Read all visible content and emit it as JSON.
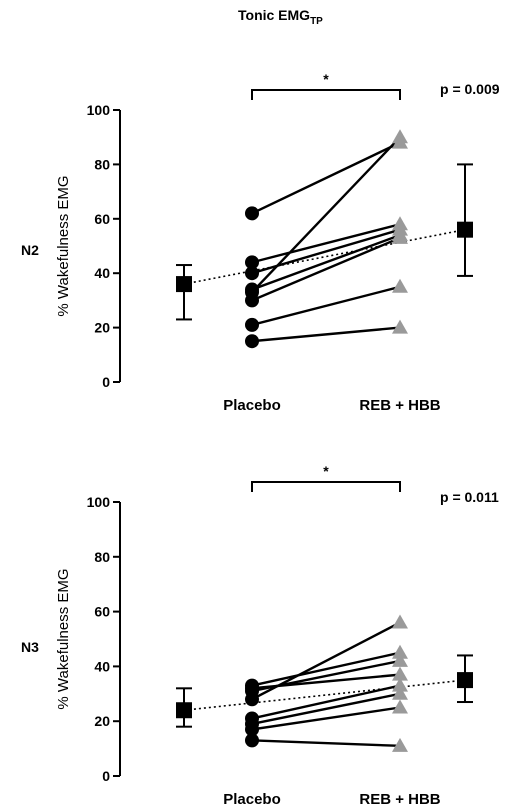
{
  "figure": {
    "title_main": "Tonic EMG",
    "title_sub": "TP"
  },
  "chart_data": [
    {
      "type": "scatter",
      "row_label": "N2",
      "ylabel": "% Wakefulness EMG",
      "ylim": [
        0,
        100
      ],
      "yticks": [
        "0",
        "20",
        "40",
        "60",
        "80",
        "100"
      ],
      "categories": [
        "Placebo",
        "REB + HBB"
      ],
      "significance": "*",
      "p_value": "p = 0.009",
      "pairs": [
        {
          "placebo": 62,
          "reb_hbb": 88
        },
        {
          "placebo": 44,
          "reb_hbb": 58
        },
        {
          "placebo": 40,
          "reb_hbb": 56
        },
        {
          "placebo": 34,
          "reb_hbb": 54
        },
        {
          "placebo": 33,
          "reb_hbb": 90
        },
        {
          "placebo": 30,
          "reb_hbb": 53
        },
        {
          "placebo": 21,
          "reb_hbb": 35
        },
        {
          "placebo": 15,
          "reb_hbb": 20
        }
      ],
      "summary": {
        "placebo": {
          "mean": 36,
          "lower": 23,
          "upper": 43
        },
        "reb_hbb": {
          "mean": 56,
          "lower": 39,
          "upper": 80
        }
      },
      "colors": {
        "placebo": "#000000",
        "reb_hbb": "#9a9a9a"
      }
    },
    {
      "type": "scatter",
      "row_label": "N3",
      "ylabel": "% Wakefulness EMG",
      "ylim": [
        0,
        100
      ],
      "yticks": [
        "0",
        "20",
        "40",
        "60",
        "80",
        "100"
      ],
      "categories": [
        "Placebo",
        "REB + HBB"
      ],
      "significance": "*",
      "p_value": "p = 0.011",
      "pairs": [
        {
          "placebo": 33,
          "reb_hbb": 45
        },
        {
          "placebo": 32,
          "reb_hbb": 37
        },
        {
          "placebo": 31,
          "reb_hbb": 42
        },
        {
          "placebo": 28,
          "reb_hbb": 56
        },
        {
          "placebo": 21,
          "reb_hbb": 33
        },
        {
          "placebo": 19,
          "reb_hbb": 30
        },
        {
          "placebo": 17,
          "reb_hbb": 25
        },
        {
          "placebo": 13,
          "reb_hbb": 11
        }
      ],
      "summary": {
        "placebo": {
          "mean": 24,
          "lower": 18,
          "upper": 32
        },
        "reb_hbb": {
          "mean": 35,
          "lower": 27,
          "upper": 44
        }
      },
      "colors": {
        "placebo": "#000000",
        "reb_hbb": "#9a9a9a"
      }
    }
  ]
}
